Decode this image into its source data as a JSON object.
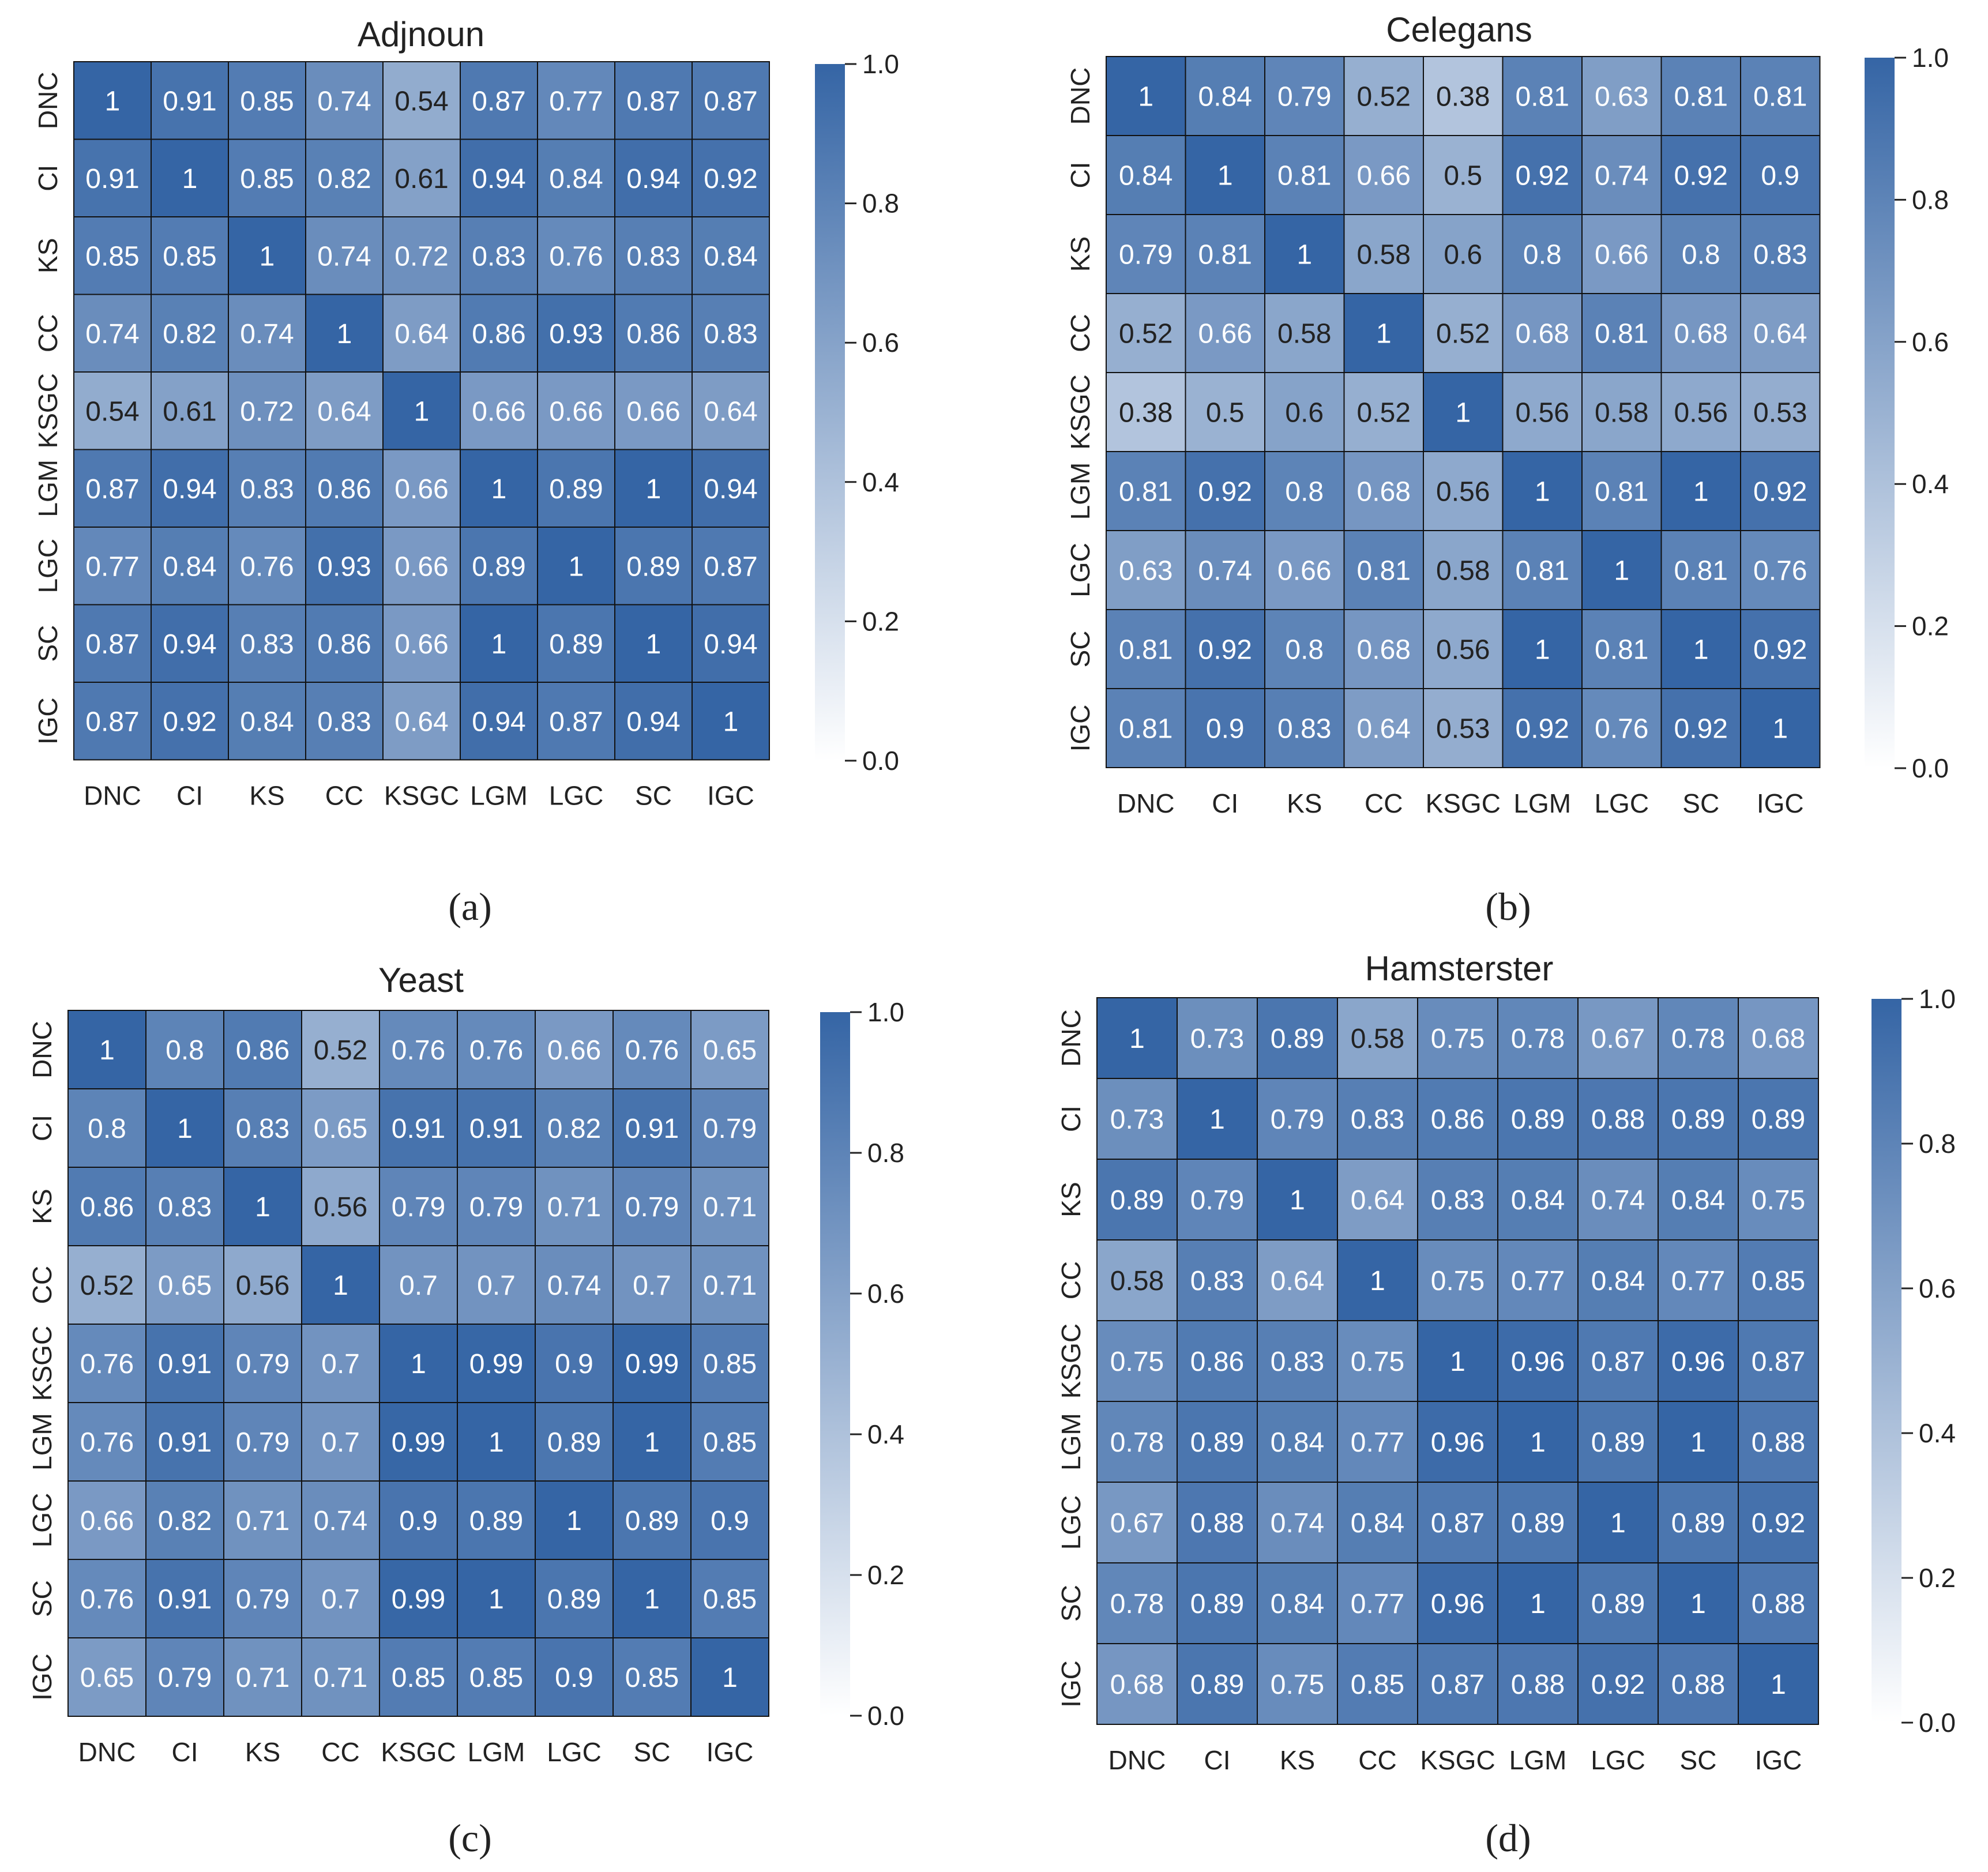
{
  "figure": {
    "colorbar_ticks": [
      "0.0",
      "0.2",
      "0.4",
      "0.6",
      "0.8",
      "1.0"
    ],
    "colors": {
      "low": "#ffffff",
      "high": "#3565a5",
      "grid": "#111111",
      "text_light": "#ffffff",
      "text_dark": "#222222"
    }
  },
  "chart_data": [
    {
      "type": "heatmap",
      "title": "Adjnoun",
      "caption": "(a)",
      "x_labels": [
        "DNC",
        "CI",
        "KS",
        "CC",
        "KSGC",
        "LGM",
        "LGC",
        "SC",
        "IGC"
      ],
      "y_labels": [
        "DNC",
        "CI",
        "KS",
        "CC",
        "KSGC",
        "LGM",
        "LGC",
        "SC",
        "IGC"
      ],
      "colorbar_range": [
        0.0,
        1.0
      ],
      "values": [
        [
          "1",
          "0.91",
          "0.85",
          "0.74",
          "0.54",
          "0.87",
          "0.77",
          "0.87",
          "0.87"
        ],
        [
          "0.91",
          "1",
          "0.85",
          "0.82",
          "0.61",
          "0.94",
          "0.84",
          "0.94",
          "0.92"
        ],
        [
          "0.85",
          "0.85",
          "1",
          "0.74",
          "0.72",
          "0.83",
          "0.76",
          "0.83",
          "0.84"
        ],
        [
          "0.74",
          "0.82",
          "0.74",
          "1",
          "0.64",
          "0.86",
          "0.93",
          "0.86",
          "0.83"
        ],
        [
          "0.54",
          "0.61",
          "0.72",
          "0.64",
          "1",
          "0.66",
          "0.66",
          "0.66",
          "0.64"
        ],
        [
          "0.87",
          "0.94",
          "0.83",
          "0.86",
          "0.66",
          "1",
          "0.89",
          "1",
          "0.94"
        ],
        [
          "0.77",
          "0.84",
          "0.76",
          "0.93",
          "0.66",
          "0.89",
          "1",
          "0.89",
          "0.87"
        ],
        [
          "0.87",
          "0.94",
          "0.83",
          "0.86",
          "0.66",
          "1",
          "0.89",
          "1",
          "0.94"
        ],
        [
          "0.87",
          "0.92",
          "0.84",
          "0.83",
          "0.64",
          "0.94",
          "0.87",
          "0.94",
          "1"
        ]
      ]
    },
    {
      "type": "heatmap",
      "title": "Celegans",
      "caption": "(b)",
      "x_labels": [
        "DNC",
        "CI",
        "KS",
        "CC",
        "KSGC",
        "LGM",
        "LGC",
        "SC",
        "IGC"
      ],
      "y_labels": [
        "DNC",
        "CI",
        "KS",
        "CC",
        "KSGC",
        "LGM",
        "LGC",
        "SC",
        "IGC"
      ],
      "colorbar_range": [
        0.0,
        1.0
      ],
      "values": [
        [
          "1",
          "0.84",
          "0.79",
          "0.52",
          "0.38",
          "0.81",
          "0.63",
          "0.81",
          "0.81"
        ],
        [
          "0.84",
          "1",
          "0.81",
          "0.66",
          "0.5",
          "0.92",
          "0.74",
          "0.92",
          "0.9"
        ],
        [
          "0.79",
          "0.81",
          "1",
          "0.58",
          "0.6",
          "0.8",
          "0.66",
          "0.8",
          "0.83"
        ],
        [
          "0.52",
          "0.66",
          "0.58",
          "1",
          "0.52",
          "0.68",
          "0.81",
          "0.68",
          "0.64"
        ],
        [
          "0.38",
          "0.5",
          "0.6",
          "0.52",
          "1",
          "0.56",
          "0.58",
          "0.56",
          "0.53"
        ],
        [
          "0.81",
          "0.92",
          "0.8",
          "0.68",
          "0.56",
          "1",
          "0.81",
          "1",
          "0.92"
        ],
        [
          "0.63",
          "0.74",
          "0.66",
          "0.81",
          "0.58",
          "0.81",
          "1",
          "0.81",
          "0.76"
        ],
        [
          "0.81",
          "0.92",
          "0.8",
          "0.68",
          "0.56",
          "1",
          "0.81",
          "1",
          "0.92"
        ],
        [
          "0.81",
          "0.9",
          "0.83",
          "0.64",
          "0.53",
          "0.92",
          "0.76",
          "0.92",
          "1"
        ]
      ]
    },
    {
      "type": "heatmap",
      "title": "Yeast",
      "caption": "(c)",
      "x_labels": [
        "DNC",
        "CI",
        "KS",
        "CC",
        "KSGC",
        "LGM",
        "LGC",
        "SC",
        "IGC"
      ],
      "y_labels": [
        "DNC",
        "CI",
        "KS",
        "CC",
        "KSGC",
        "LGM",
        "LGC",
        "SC",
        "IGC"
      ],
      "colorbar_range": [
        0.0,
        1.0
      ],
      "values": [
        [
          "1",
          "0.8",
          "0.86",
          "0.52",
          "0.76",
          "0.76",
          "0.66",
          "0.76",
          "0.65"
        ],
        [
          "0.8",
          "1",
          "0.83",
          "0.65",
          "0.91",
          "0.91",
          "0.82",
          "0.91",
          "0.79"
        ],
        [
          "0.86",
          "0.83",
          "1",
          "0.56",
          "0.79",
          "0.79",
          "0.71",
          "0.79",
          "0.71"
        ],
        [
          "0.52",
          "0.65",
          "0.56",
          "1",
          "0.7",
          "0.7",
          "0.74",
          "0.7",
          "0.71"
        ],
        [
          "0.76",
          "0.91",
          "0.79",
          "0.7",
          "1",
          "0.99",
          "0.9",
          "0.99",
          "0.85"
        ],
        [
          "0.76",
          "0.91",
          "0.79",
          "0.7",
          "0.99",
          "1",
          "0.89",
          "1",
          "0.85"
        ],
        [
          "0.66",
          "0.82",
          "0.71",
          "0.74",
          "0.9",
          "0.89",
          "1",
          "0.89",
          "0.9"
        ],
        [
          "0.76",
          "0.91",
          "0.79",
          "0.7",
          "0.99",
          "1",
          "0.89",
          "1",
          "0.85"
        ],
        [
          "0.65",
          "0.79",
          "0.71",
          "0.71",
          "0.85",
          "0.85",
          "0.9",
          "0.85",
          "1"
        ]
      ]
    },
    {
      "type": "heatmap",
      "title": "Hamsterster",
      "caption": "(d)",
      "x_labels": [
        "DNC",
        "CI",
        "KS",
        "CC",
        "KSGC",
        "LGM",
        "LGC",
        "SC",
        "IGC"
      ],
      "y_labels": [
        "DNC",
        "CI",
        "KS",
        "CC",
        "KSGC",
        "LGM",
        "LGC",
        "SC",
        "IGC"
      ],
      "colorbar_range": [
        0.0,
        1.0
      ],
      "values": [
        [
          "1",
          "0.73",
          "0.89",
          "0.58",
          "0.75",
          "0.78",
          "0.67",
          "0.78",
          "0.68"
        ],
        [
          "0.73",
          "1",
          "0.79",
          "0.83",
          "0.86",
          "0.89",
          "0.88",
          "0.89",
          "0.89"
        ],
        [
          "0.89",
          "0.79",
          "1",
          "0.64",
          "0.83",
          "0.84",
          "0.74",
          "0.84",
          "0.75"
        ],
        [
          "0.58",
          "0.83",
          "0.64",
          "1",
          "0.75",
          "0.77",
          "0.84",
          "0.77",
          "0.85"
        ],
        [
          "0.75",
          "0.86",
          "0.83",
          "0.75",
          "1",
          "0.96",
          "0.87",
          "0.96",
          "0.87"
        ],
        [
          "0.78",
          "0.89",
          "0.84",
          "0.77",
          "0.96",
          "1",
          "0.89",
          "1",
          "0.88"
        ],
        [
          "0.67",
          "0.88",
          "0.74",
          "0.84",
          "0.87",
          "0.89",
          "1",
          "0.89",
          "0.92"
        ],
        [
          "0.78",
          "0.89",
          "0.84",
          "0.77",
          "0.96",
          "1",
          "0.89",
          "1",
          "0.88"
        ],
        [
          "0.68",
          "0.89",
          "0.75",
          "0.85",
          "0.87",
          "0.88",
          "0.92",
          "0.88",
          "1"
        ]
      ]
    }
  ]
}
